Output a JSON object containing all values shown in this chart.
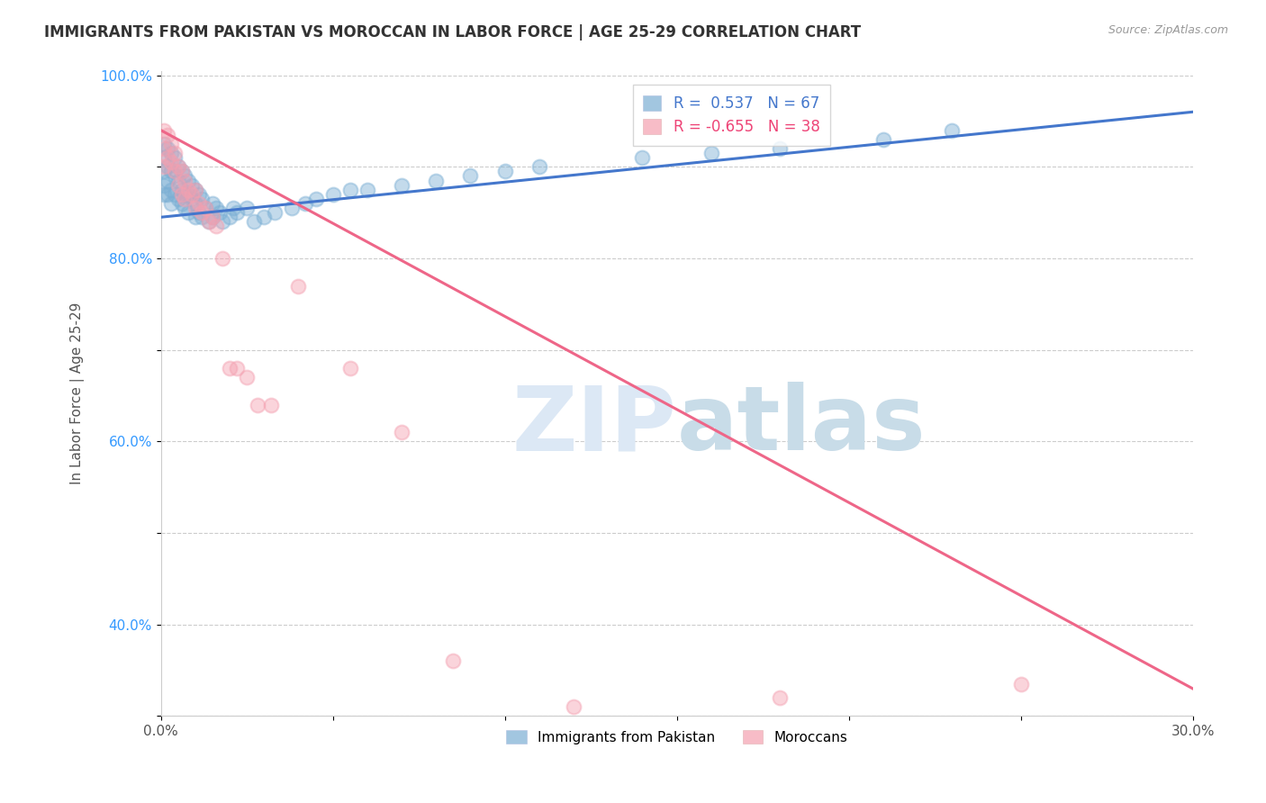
{
  "title": "IMMIGRANTS FROM PAKISTAN VS MOROCCAN IN LABOR FORCE | AGE 25-29 CORRELATION CHART",
  "source": "Source: ZipAtlas.com",
  "ylabel": "In Labor Force | Age 25-29",
  "x_min": 0.0,
  "x_max": 0.3,
  "y_min": 0.3,
  "y_max": 1.005,
  "pakistan_color": "#7BAFD4",
  "moroccan_color": "#F4A0B0",
  "pakistan_R": 0.537,
  "pakistan_N": 67,
  "moroccan_R": -0.655,
  "moroccan_N": 38,
  "pakistan_line_color": "#4477CC",
  "moroccan_line_color": "#EE6688",
  "legend_label_pakistan": "Immigrants from Pakistan",
  "legend_label_moroccan": "Moroccans",
  "pakistan_scatter_x": [
    0.001,
    0.001,
    0.001,
    0.001,
    0.001,
    0.002,
    0.002,
    0.002,
    0.002,
    0.003,
    0.003,
    0.003,
    0.003,
    0.004,
    0.004,
    0.004,
    0.005,
    0.005,
    0.005,
    0.006,
    0.006,
    0.006,
    0.007,
    0.007,
    0.007,
    0.008,
    0.008,
    0.008,
    0.009,
    0.009,
    0.01,
    0.01,
    0.01,
    0.011,
    0.011,
    0.012,
    0.012,
    0.013,
    0.014,
    0.015,
    0.015,
    0.016,
    0.017,
    0.018,
    0.02,
    0.021,
    0.022,
    0.025,
    0.027,
    0.03,
    0.033,
    0.038,
    0.042,
    0.045,
    0.05,
    0.055,
    0.06,
    0.07,
    0.08,
    0.09,
    0.1,
    0.11,
    0.14,
    0.16,
    0.18,
    0.21,
    0.23
  ],
  "pakistan_scatter_y": [
    0.925,
    0.91,
    0.895,
    0.88,
    0.87,
    0.92,
    0.9,
    0.885,
    0.87,
    0.915,
    0.895,
    0.875,
    0.86,
    0.91,
    0.89,
    0.87,
    0.9,
    0.885,
    0.865,
    0.895,
    0.875,
    0.86,
    0.89,
    0.87,
    0.855,
    0.885,
    0.87,
    0.85,
    0.88,
    0.865,
    0.875,
    0.86,
    0.845,
    0.87,
    0.85,
    0.865,
    0.845,
    0.855,
    0.84,
    0.86,
    0.845,
    0.855,
    0.85,
    0.84,
    0.845,
    0.855,
    0.85,
    0.855,
    0.84,
    0.845,
    0.85,
    0.855,
    0.86,
    0.865,
    0.87,
    0.875,
    0.875,
    0.88,
    0.885,
    0.89,
    0.895,
    0.9,
    0.91,
    0.915,
    0.92,
    0.93,
    0.94
  ],
  "moroccan_scatter_x": [
    0.001,
    0.001,
    0.001,
    0.002,
    0.002,
    0.003,
    0.003,
    0.004,
    0.004,
    0.005,
    0.005,
    0.006,
    0.006,
    0.007,
    0.007,
    0.008,
    0.009,
    0.01,
    0.01,
    0.011,
    0.012,
    0.013,
    0.014,
    0.015,
    0.016,
    0.018,
    0.02,
    0.022,
    0.025,
    0.028,
    0.032,
    0.04,
    0.055,
    0.07,
    0.085,
    0.12,
    0.18,
    0.25
  ],
  "moroccan_scatter_y": [
    0.94,
    0.92,
    0.9,
    0.935,
    0.91,
    0.925,
    0.905,
    0.915,
    0.895,
    0.9,
    0.88,
    0.895,
    0.87,
    0.885,
    0.865,
    0.875,
    0.87,
    0.855,
    0.875,
    0.86,
    0.85,
    0.855,
    0.84,
    0.845,
    0.835,
    0.8,
    0.68,
    0.68,
    0.67,
    0.64,
    0.64,
    0.77,
    0.68,
    0.61,
    0.36,
    0.31,
    0.32,
    0.335
  ],
  "pak_line_x": [
    0.0,
    0.3
  ],
  "pak_line_y": [
    0.845,
    0.96
  ],
  "mor_line_x": [
    0.0,
    0.3
  ],
  "mor_line_y": [
    0.94,
    0.33
  ]
}
